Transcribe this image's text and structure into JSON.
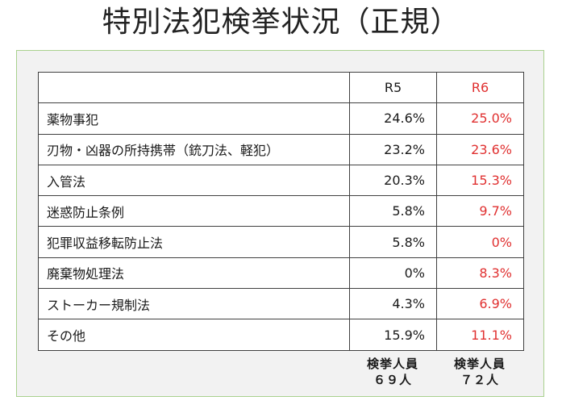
{
  "title": "特別法犯検挙状況（正規）",
  "table": {
    "headers": {
      "name": "",
      "r5": "R5",
      "r6": "R6"
    },
    "rows": [
      {
        "name": "薬物事犯",
        "r5": "24.6%",
        "r6": "25.0%"
      },
      {
        "name": "刃物・凶器の所持携帯（銃刀法、軽犯）",
        "r5": "23.2%",
        "r6": "23.6%"
      },
      {
        "name": "入管法",
        "r5": "20.3%",
        "r6": "15.3%"
      },
      {
        "name": "迷惑防止条例",
        "r5": "5.8%",
        "r6": "9.7%"
      },
      {
        "name": "犯罪収益移転防止法",
        "r5": "5.8%",
        "r6": "0%"
      },
      {
        "name": "廃棄物処理法",
        "r5": "0%",
        "r6": "8.3%"
      },
      {
        "name": "ストーカー規制法",
        "r5": "4.3%",
        "r6": "6.9%"
      },
      {
        "name": "その他",
        "r5": "15.9%",
        "r6": "11.1%"
      }
    ]
  },
  "footer": {
    "r5": {
      "label": "検挙人員",
      "count": "６９人"
    },
    "r6": {
      "label": "検挙人員",
      "count": "７２人"
    }
  },
  "colors": {
    "r6_text": "#e03030",
    "panel_border": "#a9d18e",
    "panel_bg": "#f2f2f2"
  }
}
